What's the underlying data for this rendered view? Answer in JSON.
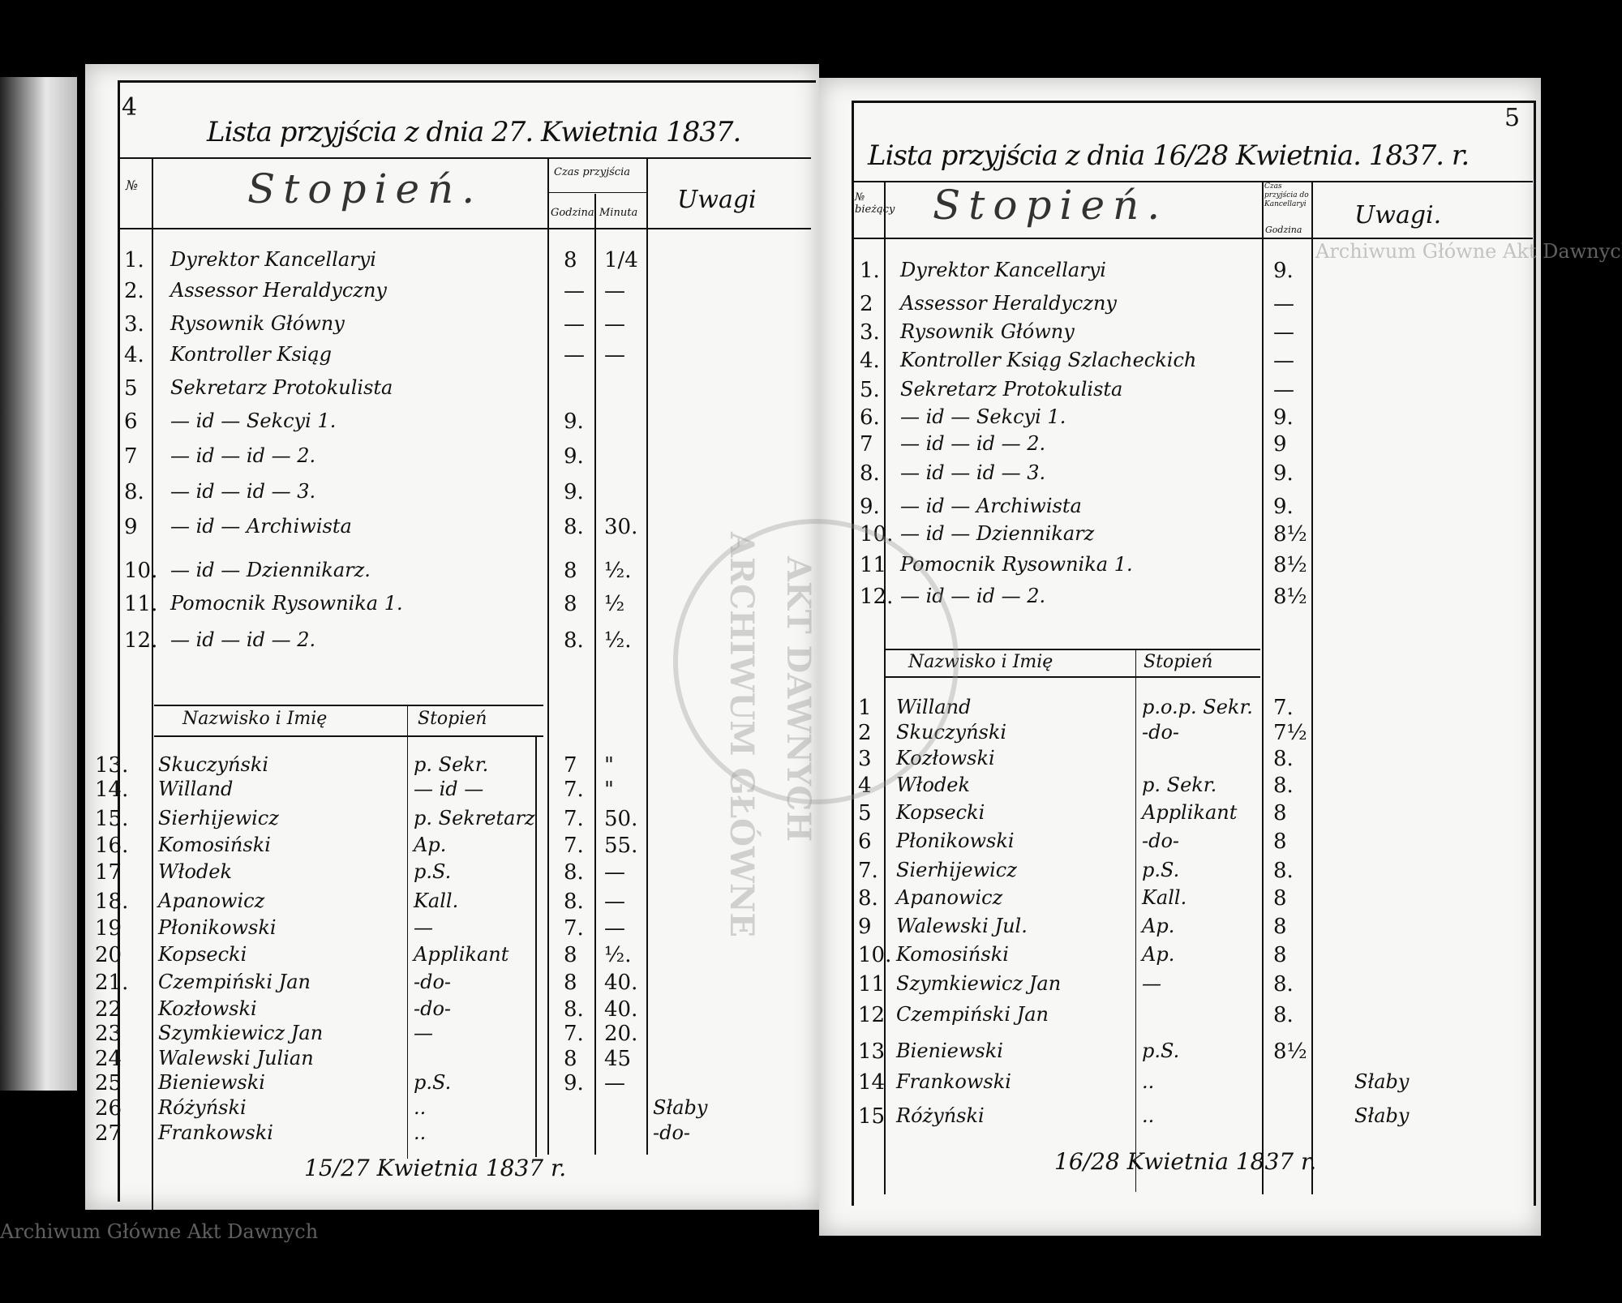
{
  "watermark": "Archiwum Główne Akt Dawnych",
  "stamp": {
    "top": "ARCHIWUM GŁÓWNE",
    "bottom": "AKT DAWNYCH"
  },
  "left_page": {
    "page_number": "4",
    "title": "Lista przyjścia z dnia 27. Kwietnia 1837.",
    "headers": {
      "no": "№",
      "rank": "Stopień.",
      "time": "Czas przyjścia",
      "hour": "Godzina",
      "minute": "Minuta",
      "remarks": "Uwagi"
    },
    "officials": [
      {
        "no": "1.",
        "rank": "Dyrektor Kancellaryi",
        "hour": "8",
        "minute": "1/4",
        "remarks": ""
      },
      {
        "no": "2.",
        "rank": "Assessor Heraldyczny",
        "hour": "—",
        "minute": "—",
        "remarks": ""
      },
      {
        "no": "3.",
        "rank": "Rysownik Główny",
        "hour": "—",
        "minute": "—",
        "remarks": ""
      },
      {
        "no": "4.",
        "rank": "Kontroller Ksiąg",
        "hour": "—",
        "minute": "—",
        "remarks": ""
      },
      {
        "no": "5",
        "rank": "Sekretarz Protokulista",
        "hour": "",
        "minute": "",
        "remarks": ""
      },
      {
        "no": "6",
        "rank": "— id — Sekcyi 1.",
        "hour": "9.",
        "minute": "",
        "remarks": ""
      },
      {
        "no": "7",
        "rank": "— id — id — 2.",
        "hour": "9.",
        "minute": "",
        "remarks": ""
      },
      {
        "no": "8.",
        "rank": "— id — id — 3.",
        "hour": "9.",
        "minute": "",
        "remarks": ""
      },
      {
        "no": "9",
        "rank": "— id — Archiwista",
        "hour": "8.",
        "minute": "30.",
        "remarks": ""
      },
      {
        "no": "10.",
        "rank": "— id — Dziennikarz.",
        "hour": "8",
        "minute": "½.",
        "remarks": ""
      },
      {
        "no": "11.",
        "rank": "Pomocnik Rysownika 1.",
        "hour": "8",
        "minute": "½",
        "remarks": ""
      },
      {
        "no": "12.",
        "rank": "— id — id — 2.",
        "hour": "8.",
        "minute": "½.",
        "remarks": ""
      }
    ],
    "staff_headers": {
      "name": "Nazwisko i Imię",
      "rank": "Stopień"
    },
    "staff": [
      {
        "no": "13.",
        "name": "Skuczyński",
        "rank": "p. Sekr.",
        "hour": "7",
        "minute": "\"",
        "remarks": ""
      },
      {
        "no": "14.",
        "name": "Willand",
        "rank": "— id —",
        "hour": "7.",
        "minute": "\"",
        "remarks": ""
      },
      {
        "no": "15.",
        "name": "Sierhijewicz",
        "rank": "p. Sekretarz",
        "hour": "7.",
        "minute": "50.",
        "remarks": ""
      },
      {
        "no": "16.",
        "name": "Komosiński",
        "rank": "Ap.",
        "hour": "7.",
        "minute": "55.",
        "remarks": ""
      },
      {
        "no": "17",
        "name": "Włodek",
        "rank": "p.S.",
        "hour": "8.",
        "minute": "—",
        "remarks": ""
      },
      {
        "no": "18.",
        "name": "Apanowicz",
        "rank": "Kall.",
        "hour": "8.",
        "minute": "—",
        "remarks": ""
      },
      {
        "no": "19",
        "name": "Płonikowski",
        "rank": "—",
        "hour": "7.",
        "minute": "—",
        "remarks": ""
      },
      {
        "no": "20",
        "name": "Kopsecki",
        "rank": "Applikant",
        "hour": "8",
        "minute": "½.",
        "remarks": ""
      },
      {
        "no": "21.",
        "name": "Czempiński Jan",
        "rank": "-do-",
        "hour": "8",
        "minute": "40.",
        "remarks": ""
      },
      {
        "no": "22",
        "name": "Kozłowski",
        "rank": "-do-",
        "hour": "8.",
        "minute": "40.",
        "remarks": ""
      },
      {
        "no": "23",
        "name": "Szymkiewicz Jan",
        "rank": "—",
        "hour": "7.",
        "minute": "20.",
        "remarks": ""
      },
      {
        "no": "24",
        "name": "Walewski Julian",
        "rank": "",
        "hour": "8",
        "minute": "45",
        "remarks": ""
      },
      {
        "no": "25",
        "name": "Bieniewski",
        "rank": "p.S.",
        "hour": "9.",
        "minute": "—",
        "remarks": ""
      },
      {
        "no": "26",
        "name": "Różyński",
        "rank": "..",
        "hour": "",
        "minute": "",
        "remarks": "Słaby"
      },
      {
        "no": "27",
        "name": "Frankowski",
        "rank": "..",
        "hour": "",
        "minute": "",
        "remarks": "-do-"
      }
    ],
    "footer": "15/27 Kwietnia 1837 r."
  },
  "right_page": {
    "page_number": "5",
    "title": "Lista przyjścia z dnia 16/28 Kwietnia. 1837. r.",
    "headers": {
      "no": "№ bieżący",
      "rank": "Stopień.",
      "time": "Czas przyjścia do Kancellaryi",
      "hour": "Godzina",
      "remarks": "Uwagi."
    },
    "officials": [
      {
        "no": "1.",
        "rank": "Dyrektor Kancellaryi",
        "hour": "9.",
        "remarks": ""
      },
      {
        "no": "2",
        "rank": "Assessor Heraldyczny",
        "hour": "—",
        "remarks": ""
      },
      {
        "no": "3.",
        "rank": "Rysownik Główny",
        "hour": "—",
        "remarks": ""
      },
      {
        "no": "4.",
        "rank": "Kontroller Ksiąg Szlacheckich",
        "hour": "—",
        "remarks": ""
      },
      {
        "no": "5.",
        "rank": "Sekretarz Protokulista",
        "hour": "—",
        "remarks": ""
      },
      {
        "no": "6.",
        "rank": "— id — Sekcyi 1.",
        "hour": "9.",
        "remarks": ""
      },
      {
        "no": "7",
        "rank": "— id — id — 2.",
        "hour": "9",
        "remarks": ""
      },
      {
        "no": "8.",
        "rank": "— id — id — 3.",
        "hour": "9.",
        "remarks": ""
      },
      {
        "no": "9.",
        "rank": "— id — Archiwista",
        "hour": "9.",
        "remarks": ""
      },
      {
        "no": "10.",
        "rank": "— id — Dziennikarz",
        "hour": "8½",
        "remarks": ""
      },
      {
        "no": "11",
        "rank": "Pomocnik Rysownika 1.",
        "hour": "8½",
        "remarks": ""
      },
      {
        "no": "12.",
        "rank": "— id — id — 2.",
        "hour": "8½",
        "remarks": ""
      }
    ],
    "staff_headers": {
      "name": "Nazwisko i Imię",
      "rank": "Stopień"
    },
    "staff": [
      {
        "no": "1",
        "name": "Willand",
        "rank": "p.o.p. Sekr.",
        "hour": "7.",
        "remarks": ""
      },
      {
        "no": "2",
        "name": "Skuczyński",
        "rank": "-do-",
        "hour": "7½",
        "remarks": ""
      },
      {
        "no": "3",
        "name": "Kozłowski",
        "rank": "",
        "hour": "8.",
        "remarks": ""
      },
      {
        "no": "4",
        "name": "Włodek",
        "rank": "p. Sekr.",
        "hour": "8.",
        "remarks": ""
      },
      {
        "no": "5",
        "name": "Kopsecki",
        "rank": "Applikant",
        "hour": "8",
        "remarks": ""
      },
      {
        "no": "6",
        "name": "Płonikowski",
        "rank": "-do-",
        "hour": "8",
        "remarks": ""
      },
      {
        "no": "7.",
        "name": "Sierhijewicz",
        "rank": "p.S.",
        "hour": "8.",
        "remarks": ""
      },
      {
        "no": "8.",
        "name": "Apanowicz",
        "rank": "Kall.",
        "hour": "8",
        "remarks": ""
      },
      {
        "no": "9",
        "name": "Walewski Jul.",
        "rank": "Ap.",
        "hour": "8",
        "remarks": ""
      },
      {
        "no": "10.",
        "name": "Komosiński",
        "rank": "Ap.",
        "hour": "8",
        "remarks": ""
      },
      {
        "no": "11",
        "name": "Szymkiewicz Jan",
        "rank": "—",
        "hour": "8.",
        "remarks": ""
      },
      {
        "no": "12",
        "name": "Czempiński Jan",
        "rank": "",
        "hour": "8.",
        "remarks": ""
      },
      {
        "no": "13",
        "name": "Bieniewski",
        "rank": "p.S.",
        "hour": "8½",
        "remarks": ""
      },
      {
        "no": "14",
        "name": "Frankowski",
        "rank": "..",
        "hour": "",
        "remarks": "Słaby"
      },
      {
        "no": "15",
        "name": "Różyński",
        "rank": "..",
        "hour": "",
        "remarks": "Słaby"
      }
    ],
    "footer": "16/28 Kwietnia 1837 r."
  }
}
